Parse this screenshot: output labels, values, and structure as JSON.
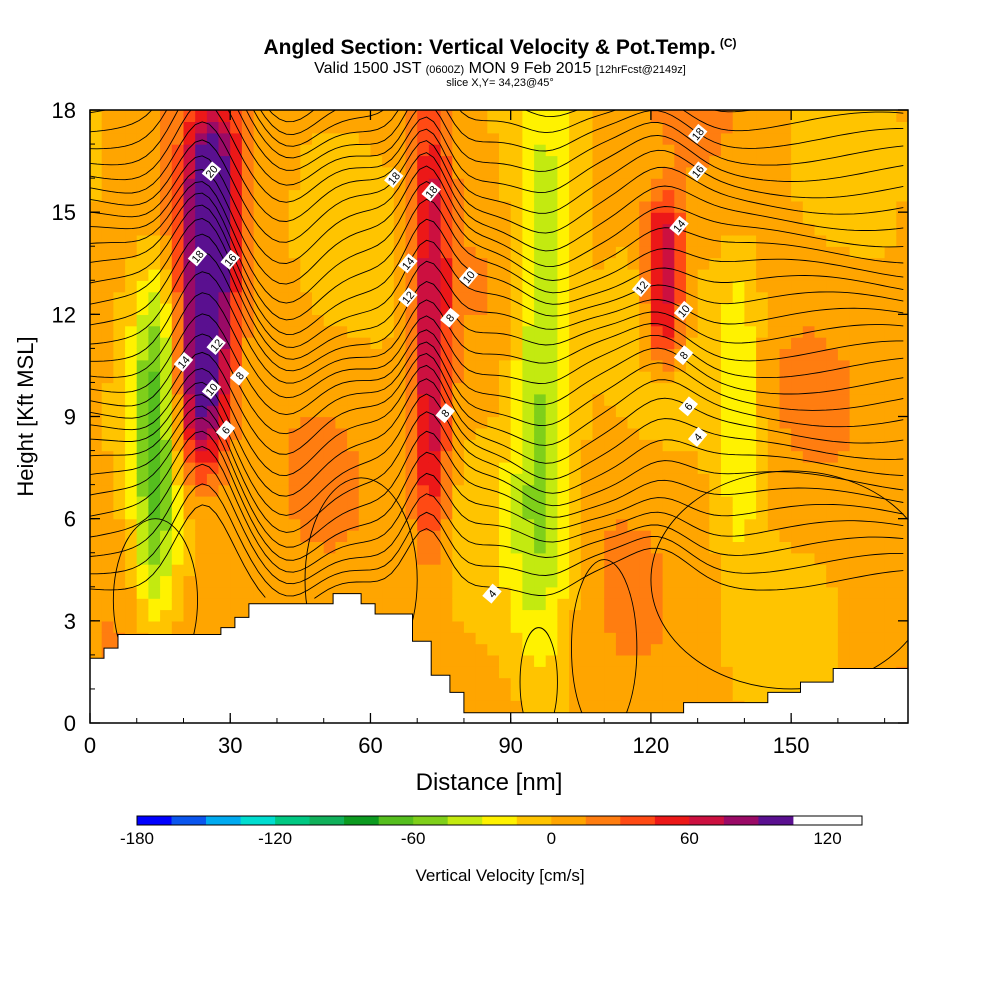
{
  "header": {
    "title": "Angled Section: Vertical Velocity & Pot.Temp.",
    "title_tag": "(C)",
    "subtitle_a": "Valid 1500 JST",
    "subtitle_b": "(0600Z)",
    "subtitle_c": "MON 9 Feb 2015",
    "subtitle_d": "[12hrFcst@2149z]",
    "slice": "slice X,Y= 34,23@45°"
  },
  "chart_data": {
    "type": "heatmap",
    "xlabel": "Distance [nm]",
    "ylabel": "Height [Kft MSL]",
    "xlim": [
      0,
      175
    ],
    "ylim": [
      0,
      18
    ],
    "x_ticks": [
      0,
      30,
      60,
      90,
      120,
      150
    ],
    "y_ticks": [
      0,
      3,
      6,
      9,
      12,
      15,
      18
    ],
    "colorbar": {
      "label": "Vertical Velocity [cm/s]",
      "levels": [
        -180,
        -165,
        -150,
        -135,
        -120,
        -105,
        -90,
        -75,
        -60,
        -45,
        -30,
        -15,
        0,
        15,
        30,
        45,
        60,
        75,
        90,
        105,
        120,
        135
      ],
      "tick_labels": [
        -180,
        -120,
        -60,
        0,
        60,
        120
      ],
      "colors": [
        "#0000ff",
        "#0a55ee",
        "#00aaf0",
        "#00ddd0",
        "#00c882",
        "#10b05a",
        "#0c9a20",
        "#55be1e",
        "#7fcf1a",
        "#c3ea10",
        "#fff200",
        "#ffc400",
        "#ffa500",
        "#ff7d10",
        "#ff4a14",
        "#ec1818",
        "#cc1040",
        "#9a0a66",
        "#5a1090"
      ]
    },
    "velocity_bands": [
      {
        "name": "upward core",
        "x_range": [
          18,
          32
        ],
        "z_range": [
          7.5,
          18
        ],
        "max": 130
      },
      {
        "name": "downdraft",
        "x_range": [
          8,
          20
        ],
        "z_range": [
          2.5,
          13.5
        ],
        "min": -60
      },
      {
        "name": "upward band",
        "x_range": [
          68,
          78
        ],
        "z_range": [
          5,
          18
        ],
        "max": 70
      },
      {
        "name": "downdraft",
        "x_range": [
          88,
          105
        ],
        "z_range": [
          2,
          18
        ],
        "min": -55
      },
      {
        "name": "upward band",
        "x_range": [
          118,
          128
        ],
        "z_range": [
          10.5,
          15.5
        ],
        "max": 70
      },
      {
        "name": "downdraft",
        "x_range": [
          133,
          145
        ],
        "z_range": [
          5,
          14
        ],
        "min": -30
      }
    ],
    "terrain": {
      "x": [
        0,
        3,
        3,
        6,
        6,
        10,
        10,
        28,
        28,
        31,
        31,
        34,
        34,
        52,
        52,
        58,
        58,
        61,
        61,
        69,
        69,
        73,
        73,
        77,
        77,
        80,
        80,
        120,
        120,
        127,
        127,
        145,
        145,
        152,
        152,
        159,
        159,
        175
      ],
      "z": [
        1.9,
        1.9,
        2.2,
        2.2,
        2.6,
        2.6,
        2.6,
        2.6,
        2.8,
        2.8,
        3.1,
        3.1,
        3.5,
        3.5,
        3.8,
        3.8,
        3.5,
        3.5,
        3.2,
        3.2,
        2.4,
        2.4,
        1.4,
        1.4,
        0.9,
        0.9,
        0.3,
        0.3,
        0.3,
        0.3,
        0.6,
        0.6,
        0.9,
        0.9,
        1.2,
        1.2,
        1.6,
        1.6
      ]
    },
    "isotherms": [
      {
        "theta": 4,
        "labels": [
          {
            "x": 86,
            "z": 3.8
          },
          {
            "x": 130,
            "z": 8.4
          }
        ]
      },
      {
        "theta": 6,
        "labels": [
          {
            "x": 29,
            "z": 8.6
          },
          {
            "x": 128,
            "z": 9.3
          }
        ]
      },
      {
        "theta": 8,
        "labels": [
          {
            "x": 32,
            "z": 10.2
          },
          {
            "x": 76,
            "z": 9.1
          },
          {
            "x": 77,
            "z": 11.9
          },
          {
            "x": 127,
            "z": 10.8
          }
        ]
      },
      {
        "theta": 10,
        "labels": [
          {
            "x": 26,
            "z": 9.8
          },
          {
            "x": 81,
            "z": 13.1
          },
          {
            "x": 127,
            "z": 12.1
          }
        ]
      },
      {
        "theta": 12,
        "labels": [
          {
            "x": 27,
            "z": 11.1
          },
          {
            "x": 68,
            "z": 12.5
          },
          {
            "x": 118,
            "z": 12.8
          }
        ]
      },
      {
        "theta": 14,
        "labels": [
          {
            "x": 20,
            "z": 10.6
          },
          {
            "x": 68,
            "z": 13.5
          },
          {
            "x": 126,
            "z": 14.6
          }
        ]
      },
      {
        "theta": 16,
        "labels": [
          {
            "x": 30,
            "z": 13.6
          },
          {
            "x": 130,
            "z": 16.2
          }
        ]
      },
      {
        "theta": 18,
        "labels": [
          {
            "x": 23,
            "z": 13.7
          },
          {
            "x": 65,
            "z": 16.0
          },
          {
            "x": 73,
            "z": 15.6
          },
          {
            "x": 130,
            "z": 17.3
          }
        ]
      },
      {
        "theta": 20,
        "labels": [
          {
            "x": 26,
            "z": 16.2
          }
        ]
      }
    ]
  }
}
